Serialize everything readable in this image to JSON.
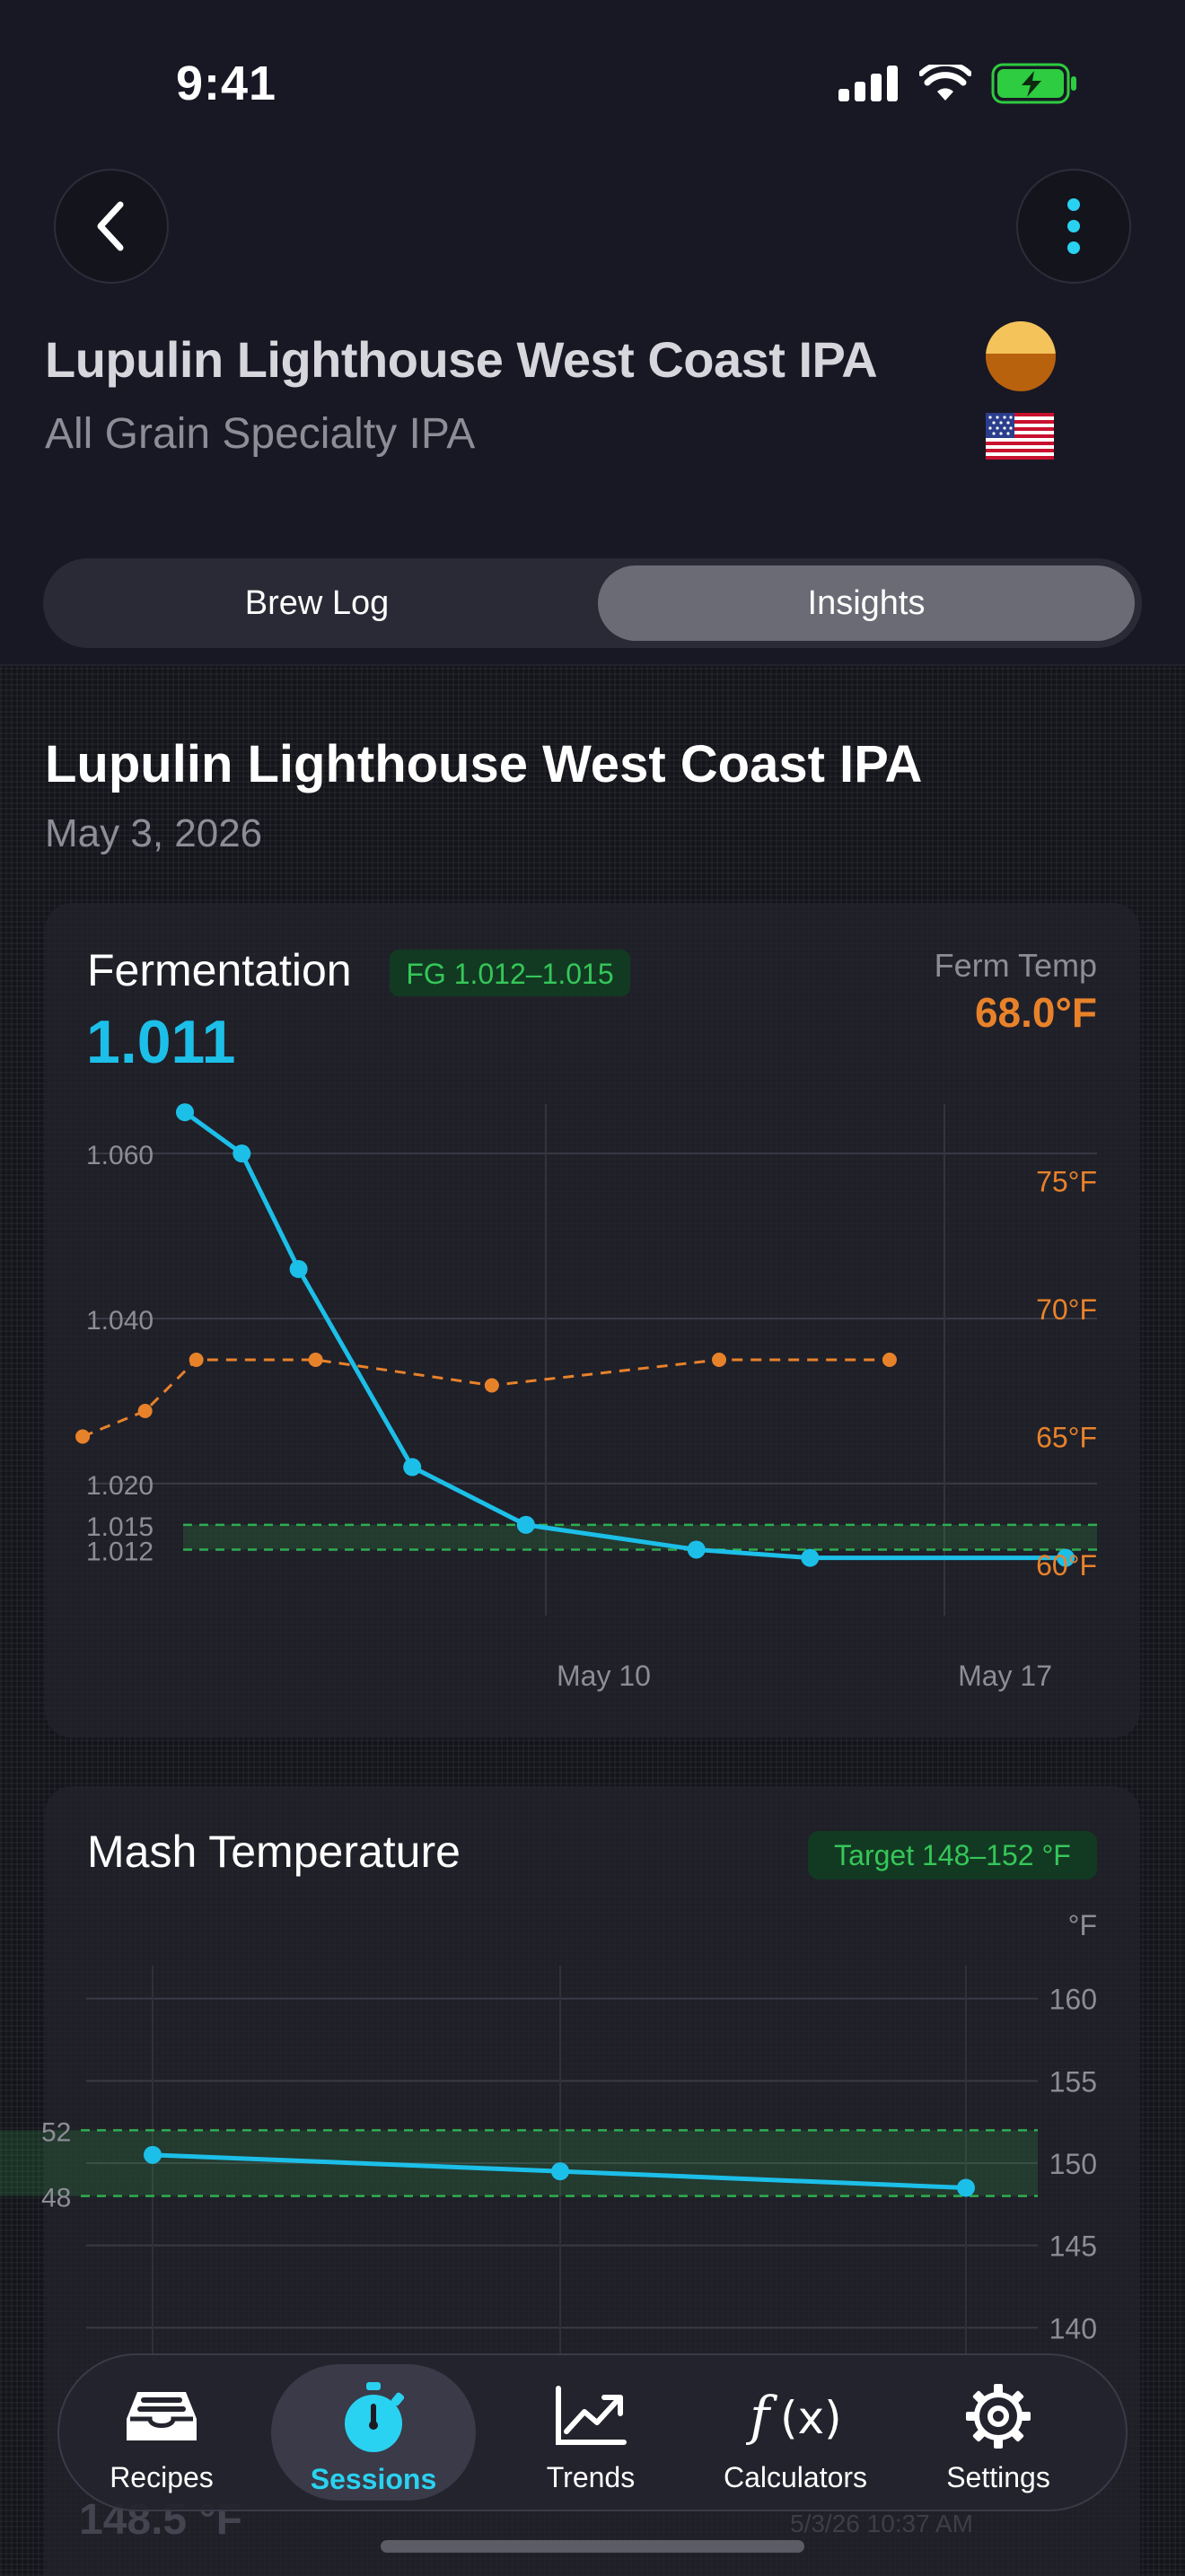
{
  "status": {
    "time": "9:41"
  },
  "header": {
    "title": "Lupulin Lighthouse West Coast IPA",
    "subtitle": "All Grain Specialty IPA",
    "beer_color": "#b8620e",
    "back_icon": "chevron-left-icon",
    "more_icon": "vertical-ellipsis-icon"
  },
  "tabs": {
    "items": [
      {
        "label": "Brew Log",
        "selected": false
      },
      {
        "label": "Insights",
        "selected": true
      }
    ]
  },
  "session": {
    "title": "Lupulin Lighthouse West Coast IPA",
    "date": "May 3, 2026"
  },
  "fermentation": {
    "title": "Fermentation",
    "fg_badge": "FG 1.012–1.015",
    "current_gravity": "1.011",
    "temp_label": "Ferm Temp",
    "current_temp": "68.0°F",
    "accent": "#1cbfe8",
    "temp_color": "#e8822a",
    "chart_data": {
      "type": "line",
      "x_tick_labels": [
        "May 10",
        "May 17"
      ],
      "left_axis": {
        "ticks": [
          "1.060",
          "1.040",
          "1.020",
          "1.015",
          "1.012"
        ],
        "ylim": [
          1.004,
          1.066
        ]
      },
      "right_axis": {
        "ticks": [
          "75°F",
          "70°F",
          "65°F",
          "60°F"
        ],
        "ylim": [
          58,
          78
        ]
      },
      "fg_band": [
        1.012,
        1.015
      ],
      "series": [
        {
          "axis": "left",
          "values": [
            {
              "x": 0.0,
              "y": 1.065
            },
            {
              "x": 1.0,
              "y": 1.06
            },
            {
              "x": 2.0,
              "y": 1.046
            },
            {
              "x": 4.0,
              "y": 1.022
            },
            {
              "x": 6.0,
              "y": 1.015
            },
            {
              "x": 9.0,
              "y": 1.012
            },
            {
              "x": 11.0,
              "y": 1.011
            },
            {
              "x": 15.5,
              "y": 1.011
            }
          ]
        },
        {
          "axis": "right",
          "values": [
            {
              "x": -1.8,
              "y": 65.0
            },
            {
              "x": -0.7,
              "y": 66.0
            },
            {
              "x": 0.2,
              "y": 68.0
            },
            {
              "x": 2.3,
              "y": 68.0
            },
            {
              "x": 5.4,
              "y": 67.0
            },
            {
              "x": 9.4,
              "y": 68.0
            },
            {
              "x": 12.4,
              "y": 68.0
            }
          ]
        }
      ]
    }
  },
  "mash": {
    "title": "Mash Temperature",
    "target_badge": "Target 148–152 °F",
    "unit_label": "°F",
    "chart_data": {
      "type": "line",
      "right_axis": {
        "ticks": [
          "160",
          "155",
          "150",
          "145",
          "140"
        ],
        "ylim": [
          138,
          162
        ]
      },
      "left_band_labels": [
        "52",
        "48"
      ],
      "target_band": [
        148,
        152
      ],
      "series": [
        {
          "values": [
            {
              "x": 0,
              "y": 150.5
            },
            {
              "x": 1,
              "y": 149.5
            },
            {
              "x": 2,
              "y": 148.5
            }
          ]
        }
      ]
    }
  },
  "behind_content": {
    "value": "148.5 °F",
    "timestamp": "5/3/26 10:37 AM"
  },
  "tab_bar": {
    "items": [
      {
        "label": "Recipes",
        "icon": "inbox-tray-icon",
        "active": false
      },
      {
        "label": "Sessions",
        "icon": "stopwatch-icon",
        "active": true
      },
      {
        "label": "Trends",
        "icon": "trend-chart-icon",
        "active": false
      },
      {
        "label": "Calculators",
        "icon": "function-icon",
        "active": false
      },
      {
        "label": "Settings",
        "icon": "gear-icon",
        "active": false
      }
    ]
  }
}
